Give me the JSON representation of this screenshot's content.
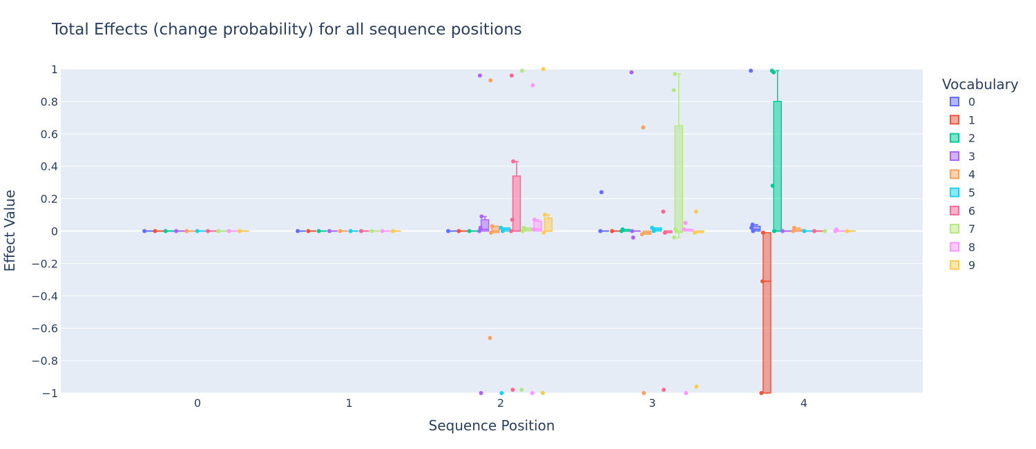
{
  "chart_data": {
    "type": "box",
    "title": "Total Effects (change probability) for all sequence positions",
    "xlabel": "Sequence Position",
    "ylabel": "Effect Value",
    "x_categories": [
      "0",
      "1",
      "2",
      "3",
      "4"
    ],
    "ylim": [
      -1,
      1
    ],
    "yticks": [
      -1,
      -0.8,
      -0.6,
      -0.4,
      -0.2,
      0,
      0.2,
      0.4,
      0.6,
      0.8,
      1
    ],
    "ytick_labels": [
      "−1",
      "−0.8",
      "−0.6",
      "−0.4",
      "−0.2",
      "0",
      "0.2",
      "0.4",
      "0.6",
      "0.8",
      "1"
    ],
    "grid": true,
    "legend": {
      "title": "Vocabulary",
      "placement": "right"
    },
    "series": [
      {
        "name": "0",
        "color": "#636efa",
        "points": [
          [
            0,
            0
          ],
          [
            1,
            0
          ],
          [
            2,
            0
          ],
          [
            3,
            0.24
          ],
          [
            3,
            0
          ],
          [
            4,
            0.99
          ],
          [
            4,
            0.04
          ],
          [
            4,
            0.02
          ],
          [
            4,
            0
          ]
        ],
        "boxes": [
          {
            "x": 0,
            "q1": 0,
            "med": 0,
            "q3": 0
          },
          {
            "x": 1,
            "q1": 0,
            "med": 0,
            "q3": 0
          },
          {
            "x": 2,
            "q1": 0,
            "med": 0,
            "q3": 0
          },
          {
            "x": 3,
            "q1": 0,
            "med": 0,
            "q3": 0
          },
          {
            "x": 4,
            "q1": 0,
            "med": 0.01,
            "q3": 0.03,
            "whi": 0.04
          }
        ]
      },
      {
        "name": "1",
        "color": "#ef553b",
        "points": [
          [
            0,
            0
          ],
          [
            1,
            0
          ],
          [
            2,
            0
          ],
          [
            3,
            0
          ],
          [
            4,
            -0.31
          ],
          [
            4,
            -1
          ],
          [
            4,
            -0.01
          ]
        ],
        "boxes": [
          {
            "x": 0,
            "q1": 0,
            "med": 0,
            "q3": 0
          },
          {
            "x": 1,
            "q1": 0,
            "med": 0,
            "q3": 0
          },
          {
            "x": 2,
            "q1": 0,
            "med": 0,
            "q3": 0
          },
          {
            "x": 3,
            "q1": 0,
            "med": 0,
            "q3": 0
          },
          {
            "x": 4,
            "q1": -1,
            "med": -0.31,
            "q3": -0.01,
            "wlo": -1
          }
        ]
      },
      {
        "name": "2",
        "color": "#00cc96",
        "points": [
          [
            0,
            0
          ],
          [
            1,
            0
          ],
          [
            2,
            0
          ],
          [
            3,
            0.01
          ],
          [
            3,
            0
          ],
          [
            4,
            0.99
          ],
          [
            4,
            0.98
          ],
          [
            4,
            0.28
          ],
          [
            4,
            0
          ]
        ],
        "boxes": [
          {
            "x": 0,
            "q1": 0,
            "med": 0,
            "q3": 0
          },
          {
            "x": 1,
            "q1": 0,
            "med": 0,
            "q3": 0
          },
          {
            "x": 2,
            "q1": 0,
            "med": 0,
            "q3": 0
          },
          {
            "x": 3,
            "q1": 0,
            "med": 0,
            "q3": 0.01
          },
          {
            "x": 4,
            "q1": 0,
            "med": 0,
            "q3": 0.8,
            "whi": 0.99
          }
        ]
      },
      {
        "name": "3",
        "color": "#ab63fa",
        "points": [
          [
            0,
            0
          ],
          [
            1,
            0
          ],
          [
            2,
            0.96
          ],
          [
            2,
            0.09
          ],
          [
            2,
            0.02
          ],
          [
            2,
            0
          ],
          [
            2,
            -1
          ],
          [
            3,
            0.98
          ],
          [
            3,
            -0.04
          ],
          [
            3,
            0
          ],
          [
            4,
            0
          ]
        ],
        "boxes": [
          {
            "x": 0,
            "q1": 0,
            "med": 0,
            "q3": 0
          },
          {
            "x": 1,
            "q1": 0,
            "med": 0,
            "q3": 0
          },
          {
            "x": 2,
            "q1": 0,
            "med": 0.01,
            "q3": 0.07,
            "whi": 0.09
          },
          {
            "x": 3,
            "q1": 0,
            "med": 0,
            "q3": 0
          },
          {
            "x": 4,
            "q1": 0,
            "med": 0,
            "q3": 0
          }
        ]
      },
      {
        "name": "4",
        "color": "#ffa15a",
        "points": [
          [
            0,
            0
          ],
          [
            1,
            0
          ],
          [
            2,
            0.93
          ],
          [
            2,
            0.03
          ],
          [
            2,
            -0.01
          ],
          [
            2,
            -0.66
          ],
          [
            3,
            0.64
          ],
          [
            3,
            -0.02
          ],
          [
            3,
            -1
          ],
          [
            4,
            0.02
          ],
          [
            4,
            0
          ]
        ],
        "boxes": [
          {
            "x": 0,
            "q1": 0,
            "med": 0,
            "q3": 0
          },
          {
            "x": 1,
            "q1": 0,
            "med": 0,
            "q3": 0
          },
          {
            "x": 2,
            "q1": -0.01,
            "med": 0,
            "q3": 0.03
          },
          {
            "x": 3,
            "q1": -0.02,
            "med": -0.01,
            "q3": 0
          },
          {
            "x": 4,
            "q1": 0,
            "med": 0,
            "q3": 0.01,
            "whi": 0.02
          }
        ]
      },
      {
        "name": "5",
        "color": "#19d3f3",
        "points": [
          [
            0,
            0
          ],
          [
            1,
            0
          ],
          [
            2,
            0.02
          ],
          [
            2,
            0
          ],
          [
            2,
            -1
          ],
          [
            3,
            0.02
          ],
          [
            3,
            0
          ],
          [
            4,
            0
          ]
        ],
        "boxes": [
          {
            "x": 0,
            "q1": 0,
            "med": 0,
            "q3": 0
          },
          {
            "x": 1,
            "q1": 0,
            "med": 0,
            "q3": 0
          },
          {
            "x": 2,
            "q1": 0,
            "med": 0.01,
            "q3": 0.02
          },
          {
            "x": 3,
            "q1": 0,
            "med": 0.01,
            "q3": 0.02
          },
          {
            "x": 4,
            "q1": 0,
            "med": 0,
            "q3": 0
          }
        ]
      },
      {
        "name": "6",
        "color": "#ff6692",
        "points": [
          [
            0,
            0
          ],
          [
            1,
            0
          ],
          [
            2,
            0.96
          ],
          [
            2,
            0.43
          ],
          [
            2,
            0.07
          ],
          [
            2,
            0
          ],
          [
            2,
            -0.98
          ],
          [
            3,
            0.12
          ],
          [
            3,
            -0.01
          ],
          [
            3,
            -0.98
          ],
          [
            4,
            0
          ]
        ],
        "boxes": [
          {
            "x": 0,
            "q1": 0,
            "med": 0,
            "q3": 0
          },
          {
            "x": 1,
            "q1": 0,
            "med": 0,
            "q3": 0
          },
          {
            "x": 2,
            "q1": 0,
            "med": 0,
            "q3": 0.34,
            "whi": 0.43
          },
          {
            "x": 3,
            "q1": -0.01,
            "med": 0,
            "q3": 0
          },
          {
            "x": 4,
            "q1": 0,
            "med": 0,
            "q3": 0
          }
        ]
      },
      {
        "name": "7",
        "color": "#b6e880",
        "points": [
          [
            0,
            0
          ],
          [
            1,
            0
          ],
          [
            2,
            0.99
          ],
          [
            2,
            0.02
          ],
          [
            2,
            0
          ],
          [
            2,
            -0.98
          ],
          [
            3,
            0.97
          ],
          [
            3,
            0.87
          ],
          [
            3,
            0.01
          ],
          [
            3,
            -0.04
          ],
          [
            4,
            0
          ]
        ],
        "boxes": [
          {
            "x": 0,
            "q1": 0,
            "med": 0,
            "q3": 0
          },
          {
            "x": 1,
            "q1": 0,
            "med": 0,
            "q3": 0
          },
          {
            "x": 2,
            "q1": 0,
            "med": 0.01,
            "q3": 0.02
          },
          {
            "x": 3,
            "q1": -0.01,
            "med": 0,
            "q3": 0.65,
            "whi": 0.97,
            "wlo": -0.04
          }
        ]
      },
      {
        "name": "8",
        "color": "#ff97ff",
        "points": [
          [
            0,
            0
          ],
          [
            1,
            0
          ],
          [
            2,
            0.9
          ],
          [
            2,
            0.07
          ],
          [
            2,
            0.01
          ],
          [
            2,
            -1
          ],
          [
            3,
            0.05
          ],
          [
            3,
            0.01
          ],
          [
            3,
            -1
          ],
          [
            4,
            0.01
          ],
          [
            4,
            0
          ]
        ],
        "boxes": [
          {
            "x": 0,
            "q1": 0,
            "med": 0,
            "q3": 0
          },
          {
            "x": 1,
            "q1": 0,
            "med": 0,
            "q3": 0
          },
          {
            "x": 2,
            "q1": 0,
            "med": 0.01,
            "q3": 0.06,
            "whi": 0.07
          },
          {
            "x": 3,
            "q1": 0,
            "med": 0.01,
            "q3": 0.01
          },
          {
            "x": 4,
            "q1": 0,
            "med": 0,
            "q3": 0
          }
        ]
      },
      {
        "name": "9",
        "color": "#fecb52",
        "points": [
          [
            0,
            0
          ],
          [
            1,
            0
          ],
          [
            2,
            1
          ],
          [
            2,
            0.1
          ],
          [
            2,
            -0.01
          ],
          [
            2,
            -1
          ],
          [
            3,
            0.12
          ],
          [
            3,
            -0.01
          ],
          [
            3,
            -0.96
          ],
          [
            4,
            0
          ]
        ],
        "boxes": [
          {
            "x": 0,
            "q1": 0,
            "med": 0,
            "q3": 0
          },
          {
            "x": 1,
            "q1": 0,
            "med": 0,
            "q3": 0
          },
          {
            "x": 2,
            "q1": 0,
            "med": 0,
            "q3": 0.08,
            "whi": 0.1
          },
          {
            "x": 3,
            "q1": -0.01,
            "med": 0,
            "q3": 0
          },
          {
            "x": 4,
            "q1": 0,
            "med": 0,
            "q3": 0
          }
        ]
      }
    ]
  }
}
